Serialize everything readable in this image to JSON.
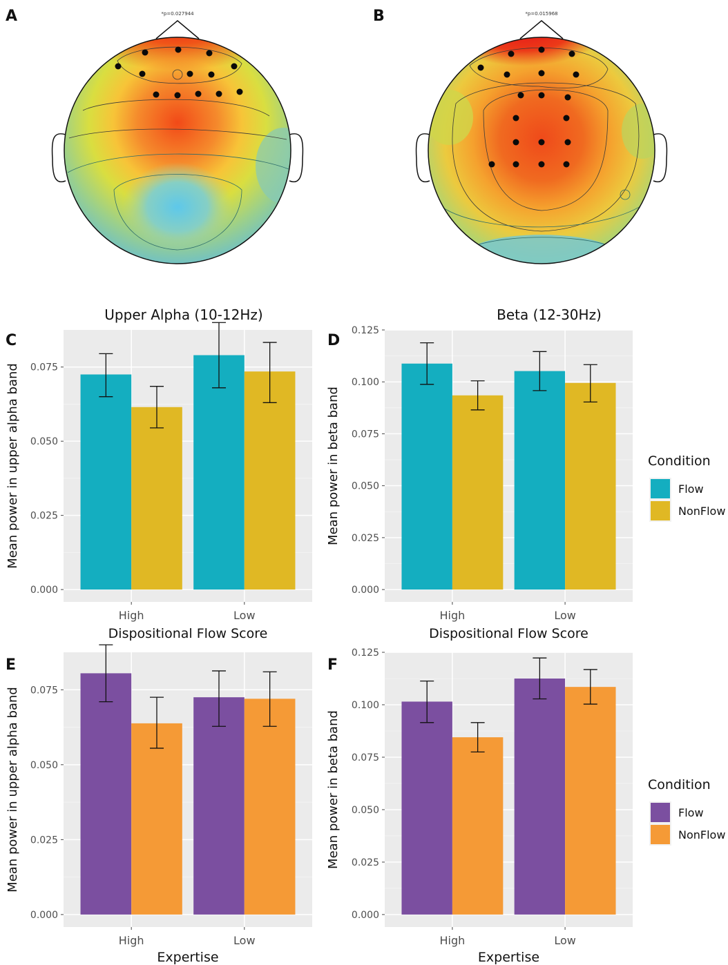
{
  "figure": {
    "panel_labels": [
      "A",
      "B",
      "C",
      "D",
      "E",
      "F"
    ],
    "topo_annotations": [
      "*p=0.027944",
      "*p=0.015968"
    ],
    "topo_electrodes_A": [
      [
        210,
        76
      ],
      [
        258,
        72
      ],
      [
        171,
        96
      ],
      [
        206,
        107
      ],
      [
        275,
        107
      ],
      [
        303,
        77
      ],
      [
        306,
        108
      ],
      [
        339,
        96
      ],
      [
        226,
        137
      ],
      [
        257,
        138
      ],
      [
        287,
        136
      ],
      [
        317,
        136
      ],
      [
        347,
        133
      ]
    ],
    "topo_electrodes_B": [
      [
        740,
        78
      ],
      [
        784,
        72
      ],
      [
        828,
        78
      ],
      [
        696,
        98
      ],
      [
        734,
        108
      ],
      [
        784,
        106
      ],
      [
        834,
        108
      ],
      [
        754,
        138
      ],
      [
        784,
        138
      ],
      [
        822,
        141
      ],
      [
        747,
        171
      ],
      [
        820,
        171
      ],
      [
        747,
        206
      ],
      [
        784,
        206
      ],
      [
        822,
        206
      ],
      [
        712,
        238
      ],
      [
        747,
        238
      ],
      [
        784,
        238
      ],
      [
        820,
        238
      ]
    ]
  },
  "chart_data": [
    {
      "panel": "C",
      "type": "bar",
      "title": "Upper Alpha (10-12Hz)",
      "xlabel": "Dispositional Flow Score",
      "ylabel": "Mean power in upper alpha band",
      "categories": [
        "High",
        "Low"
      ],
      "ylim": [
        0,
        0.0875
      ],
      "yticks": [
        "0.000",
        "0.025",
        "0.050",
        "0.075"
      ],
      "series": [
        {
          "name": "Flow",
          "color": "#14aec0",
          "values": [
            0.0725,
            0.079
          ],
          "err_low": [
            0.065,
            0.068
          ],
          "err_high": [
            0.0795,
            0.09
          ]
        },
        {
          "name": "NonFlow",
          "color": "#e0b824",
          "values": [
            0.0615,
            0.0735
          ],
          "err_low": [
            0.0545,
            0.063
          ],
          "err_high": [
            0.0685,
            0.0833
          ]
        }
      ],
      "legend": "none",
      "grid": true
    },
    {
      "panel": "D",
      "type": "bar",
      "title": "Beta (12-30Hz)",
      "xlabel": "Dispositional Flow Score",
      "ylabel": "Mean power in beta band",
      "categories": [
        "High",
        "Low"
      ],
      "ylim": [
        0,
        0.125
      ],
      "yticks": [
        "0.000",
        "0.025",
        "0.050",
        "0.075",
        "0.100",
        "0.125"
      ],
      "series": [
        {
          "name": "Flow",
          "color": "#14aec0",
          "values": [
            0.1088,
            0.1052
          ],
          "err_low": [
            0.0988,
            0.0958
          ],
          "err_high": [
            0.1188,
            0.1146
          ]
        },
        {
          "name": "NonFlow",
          "color": "#e0b824",
          "values": [
            0.0935,
            0.0995
          ],
          "err_low": [
            0.0865,
            0.0903
          ],
          "err_high": [
            0.1005,
            0.1083
          ]
        }
      ],
      "legend": {
        "title": "Condition",
        "items": [
          "Flow",
          "NonFlow"
        ],
        "position": "right"
      },
      "grid": true
    },
    {
      "panel": "E",
      "type": "bar",
      "xlabel": "Expertise",
      "ylabel": "Mean power in upper alpha band",
      "categories": [
        "High",
        "Low"
      ],
      "ylim": [
        0,
        0.0875
      ],
      "yticks": [
        "0.000",
        "0.025",
        "0.050",
        "0.075"
      ],
      "series": [
        {
          "name": "Flow",
          "color": "#7b4fa0",
          "values": [
            0.0805,
            0.0725
          ],
          "err_low": [
            0.071,
            0.0628
          ],
          "err_high": [
            0.09,
            0.0813
          ]
        },
        {
          "name": "NonFlow",
          "color": "#f59a36",
          "values": [
            0.0638,
            0.072
          ],
          "err_low": [
            0.0555,
            0.0628
          ],
          "err_high": [
            0.0725,
            0.081
          ]
        }
      ],
      "legend": "none",
      "grid": true
    },
    {
      "panel": "F",
      "type": "bar",
      "xlabel": "Expertise",
      "ylabel": "Mean power in beta band",
      "categories": [
        "High",
        "Low"
      ],
      "ylim": [
        0,
        0.125
      ],
      "yticks": [
        "0.000",
        "0.025",
        "0.050",
        "0.075",
        "0.100",
        "0.125"
      ],
      "series": [
        {
          "name": "Flow",
          "color": "#7b4fa0",
          "values": [
            0.1015,
            0.1125
          ],
          "err_low": [
            0.0915,
            0.1028
          ],
          "err_high": [
            0.1113,
            0.1223
          ]
        },
        {
          "name": "NonFlow",
          "color": "#f59a36",
          "values": [
            0.0845,
            0.1085
          ],
          "err_low": [
            0.0775,
            0.1003
          ],
          "err_high": [
            0.0915,
            0.1168
          ]
        }
      ],
      "legend": {
        "title": "Condition",
        "items": [
          "Flow",
          "NonFlow"
        ],
        "position": "right"
      },
      "grid": true
    }
  ]
}
